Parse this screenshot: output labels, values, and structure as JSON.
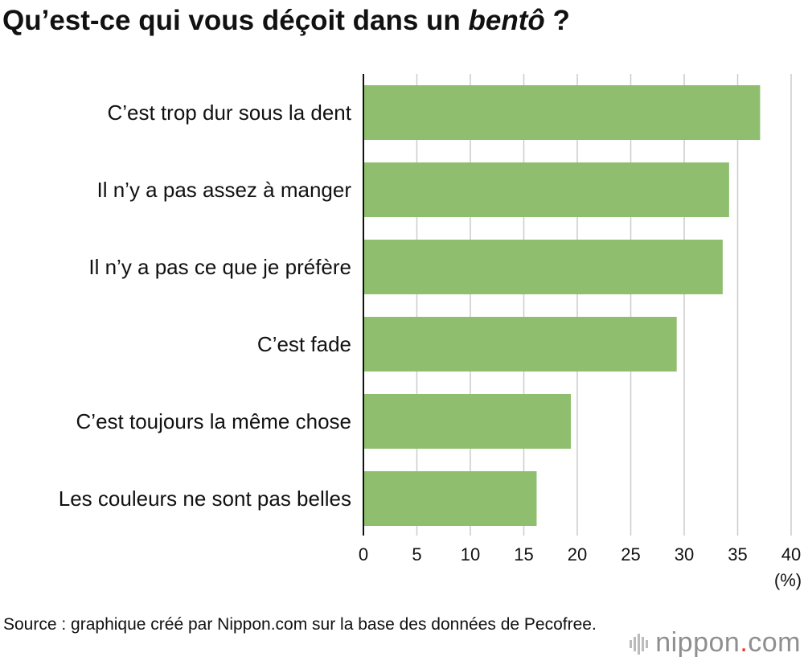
{
  "title": {
    "main": "Qu’est-ce qui vous déçoit dans un ",
    "italic": "bentô",
    "end": " ?"
  },
  "chart_data": {
    "type": "bar",
    "orientation": "horizontal",
    "categories": [
      "C’est trop dur sous la dent",
      "Il n’y a pas assez à manger",
      "Il n’y a pas ce que je préfère",
      "C’est fade",
      "C’est toujours la même chose",
      "Les couleurs ne sont pas belles"
    ],
    "values": [
      37.1,
      34.2,
      33.6,
      29.3,
      19.4,
      16.2
    ],
    "xlim": [
      0,
      40
    ],
    "xticks": [
      "0",
      "5",
      "10",
      "15",
      "20",
      "25",
      "30",
      "35",
      "40"
    ],
    "xunit": "(%)",
    "grid": true,
    "bar_color": "#8fbf6e"
  },
  "source": "Source : graphique créé par Nippon.com sur la base des données de Pecofree.",
  "logo": {
    "left": "nippon",
    "dot": ".",
    "right": "com"
  }
}
